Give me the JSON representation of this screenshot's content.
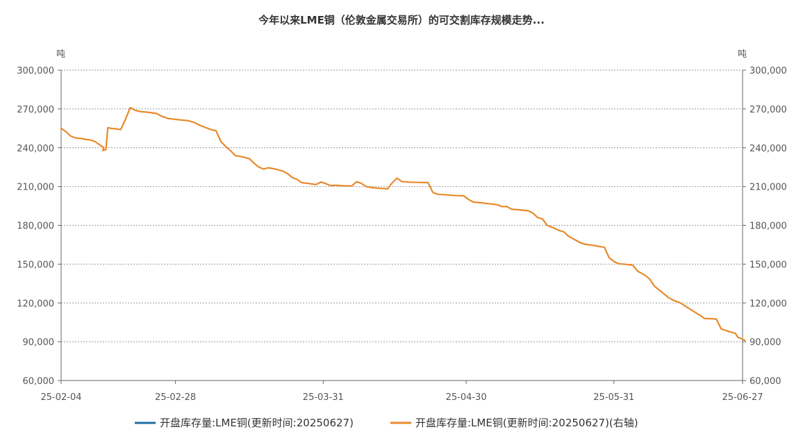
{
  "chart_data": {
    "type": "line",
    "title": "今年以来LME铜（伦敦金属交易所）的可交割库存规模走势...",
    "left_unit": "吨",
    "right_unit": "吨",
    "y_ticks": [
      "300,000",
      "270,000",
      "240,000",
      "210,000",
      "180,000",
      "150,000",
      "120,000",
      "90,000",
      "60,000"
    ],
    "ylim": [
      60000,
      300000
    ],
    "x_ticks": [
      "25-02-04",
      "25-02-28",
      "25-03-31",
      "25-04-30",
      "25-05-31",
      "25-06-27"
    ],
    "x_tick_days": [
      0,
      24,
      55,
      85,
      116,
      143
    ],
    "xlim_days": [
      0,
      143
    ],
    "grid": true,
    "legend_position": "bottom",
    "series": [
      {
        "name": "开盘库存量:LME铜(更新时间:20250627)",
        "color": "#1f6fa3",
        "axis": "left",
        "values": []
      },
      {
        "name": "开盘库存量:LME铜(更新时间:20250627)(右轴)",
        "color": "#e8892a",
        "axis": "right",
        "points": [
          [
            0,
            255000
          ],
          [
            1,
            252500
          ],
          [
            2,
            249000
          ],
          [
            3,
            247600
          ],
          [
            4,
            247200
          ],
          [
            5,
            246500
          ],
          [
            6,
            246100
          ],
          [
            7,
            245000
          ],
          [
            8,
            242500
          ],
          [
            9,
            240000
          ],
          [
            8.7,
            238000
          ],
          [
            9.4,
            238500
          ],
          [
            9.8,
            255500
          ],
          [
            10.5,
            255000
          ],
          [
            11.5,
            254600
          ],
          [
            12.5,
            254000
          ],
          [
            13.5,
            262000
          ],
          [
            14.5,
            271000
          ],
          [
            15.5,
            269000
          ],
          [
            16.5,
            268000
          ],
          [
            18,
            267500
          ],
          [
            20,
            266500
          ],
          [
            21,
            264500
          ],
          [
            22.5,
            262500
          ],
          [
            24,
            262000
          ],
          [
            25,
            261500
          ],
          [
            26.5,
            261000
          ],
          [
            28,
            259500
          ],
          [
            29,
            257500
          ],
          [
            30,
            256000
          ],
          [
            31.5,
            254000
          ],
          [
            32.5,
            253200
          ],
          [
            33.5,
            245000
          ],
          [
            34.5,
            241000
          ],
          [
            35.5,
            238000
          ],
          [
            36.5,
            234000
          ],
          [
            38,
            233000
          ],
          [
            39.5,
            231500
          ],
          [
            40.5,
            228000
          ],
          [
            41.5,
            225000
          ],
          [
            42.5,
            223500
          ],
          [
            43.5,
            224500
          ],
          [
            45,
            223500
          ],
          [
            46.5,
            222000
          ],
          [
            47.5,
            220000
          ],
          [
            48.5,
            217000
          ],
          [
            49.5,
            215500
          ],
          [
            50.5,
            213000
          ],
          [
            52,
            212300
          ],
          [
            53.5,
            211500
          ],
          [
            54.5,
            213500
          ],
          [
            55.5,
            212300
          ],
          [
            56.5,
            210800
          ],
          [
            58,
            211000
          ],
          [
            59.5,
            210500
          ],
          [
            61,
            210500
          ],
          [
            62,
            213700
          ],
          [
            63,
            212500
          ],
          [
            64,
            210000
          ],
          [
            65.5,
            209000
          ],
          [
            67,
            208600
          ],
          [
            68.5,
            208200
          ],
          [
            69.5,
            213000
          ],
          [
            70.5,
            216500
          ],
          [
            71.5,
            213800
          ],
          [
            73,
            213400
          ],
          [
            75,
            213200
          ],
          [
            77,
            213000
          ],
          [
            78,
            205500
          ],
          [
            79,
            204000
          ],
          [
            81,
            203500
          ],
          [
            83,
            203000
          ],
          [
            84.5,
            202800
          ],
          [
            85.5,
            200000
          ],
          [
            86.5,
            198000
          ],
          [
            88,
            197500
          ],
          [
            89.5,
            196800
          ],
          [
            91.5,
            196000
          ],
          [
            92.5,
            194500
          ],
          [
            93.5,
            194600
          ],
          [
            94.5,
            192500
          ],
          [
            96,
            192000
          ],
          [
            98,
            191300
          ],
          [
            99,
            189500
          ],
          [
            100,
            186000
          ],
          [
            101,
            185000
          ],
          [
            102,
            180000
          ],
          [
            103,
            178500
          ],
          [
            104.5,
            176000
          ],
          [
            105.5,
            175000
          ],
          [
            106.5,
            171500
          ],
          [
            107.5,
            169500
          ],
          [
            109,
            166500
          ],
          [
            110,
            165300
          ],
          [
            111.5,
            164600
          ],
          [
            113,
            163700
          ],
          [
            114,
            163000
          ],
          [
            115,
            155000
          ],
          [
            116,
            152000
          ],
          [
            117,
            150300
          ],
          [
            118.5,
            149800
          ],
          [
            119.5,
            149400
          ],
          [
            120,
            149000
          ],
          [
            121,
            144500
          ],
          [
            122.5,
            141500
          ],
          [
            123.5,
            138500
          ],
          [
            124.5,
            133000
          ],
          [
            125.5,
            130000
          ],
          [
            126.5,
            127000
          ],
          [
            127.5,
            124000
          ],
          [
            128.5,
            122000
          ],
          [
            130,
            120000
          ],
          [
            131,
            117500
          ],
          [
            132.5,
            114000
          ],
          [
            134,
            110500
          ],
          [
            135,
            108000
          ],
          [
            136.5,
            107800
          ],
          [
            137.5,
            107500
          ],
          [
            138.5,
            100000
          ],
          [
            140,
            98000
          ],
          [
            141.5,
            96500
          ],
          [
            142,
            93500
          ],
          [
            143,
            92000
          ],
          [
            143.5,
            91000
          ]
        ]
      }
    ]
  }
}
